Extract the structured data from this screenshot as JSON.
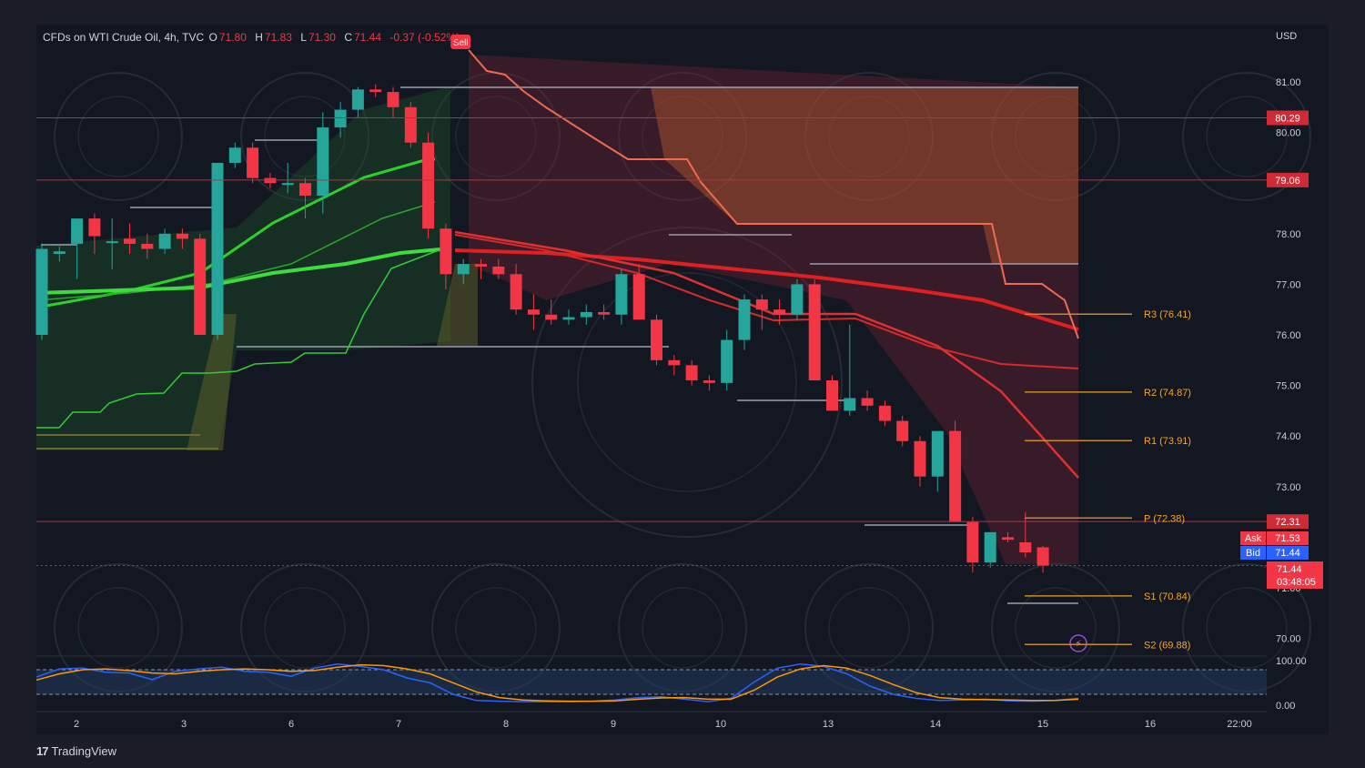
{
  "header": {
    "symbol_text": "CFDs on WTI Crude Oil, 4h, TVC",
    "open_label": "O",
    "open": "71.80",
    "high_label": "H",
    "high": "71.83",
    "low_label": "L",
    "low": "71.30",
    "close_label": "C",
    "close": "71.44",
    "change": "-0.37 (-0.52%)"
  },
  "currency": "USD",
  "branding": {
    "logo": "17",
    "name": "TradingView"
  },
  "colors": {
    "background": "#1a1d27",
    "bull": "#26a69a",
    "bear": "#f23645",
    "accent_orange": "#f5a623",
    "ask": "#f23645",
    "bid": "#2962ff"
  },
  "chart_data": {
    "type": "candlestick",
    "symbol": "CFDs on WTI Crude Oil",
    "timeframe": "4h",
    "source": "TVC",
    "x_tick_labels": [
      "2",
      "3",
      "6",
      "7",
      "8",
      "9",
      "10",
      "13",
      "14",
      "15",
      "16",
      "22:00"
    ],
    "y_ticks": [
      81.0,
      80.0,
      78.0,
      77.0,
      76.0,
      75.0,
      74.0,
      73.0,
      71.0,
      70.0
    ],
    "y_tick_labels": [
      "81.00",
      "80.00",
      "78.00",
      "77.00",
      "76.00",
      "75.00",
      "74.00",
      "73.00",
      "71.00",
      "70.00"
    ],
    "ylim": [
      69.7,
      81.2
    ],
    "candles": [
      {
        "o": 76.0,
        "h": 77.8,
        "l": 75.9,
        "c": 77.7
      },
      {
        "o": 77.6,
        "h": 77.75,
        "l": 77.45,
        "c": 77.65
      },
      {
        "o": 77.8,
        "h": 78.2,
        "l": 77.1,
        "c": 78.3
      },
      {
        "o": 78.3,
        "h": 78.4,
        "l": 77.6,
        "c": 77.95
      },
      {
        "o": 77.85,
        "h": 78.3,
        "l": 77.3,
        "c": 77.85
      },
      {
        "o": 77.9,
        "h": 78.2,
        "l": 77.6,
        "c": 77.8
      },
      {
        "o": 77.8,
        "h": 78.0,
        "l": 77.5,
        "c": 77.7
      },
      {
        "o": 77.7,
        "h": 78.1,
        "l": 77.6,
        "c": 78.0
      },
      {
        "o": 78.0,
        "h": 78.1,
        "l": 77.7,
        "c": 77.9
      },
      {
        "o": 77.9,
        "h": 78.0,
        "l": 76.1,
        "c": 76.0
      },
      {
        "o": 76.0,
        "h": 79.4,
        "l": 75.9,
        "c": 79.4
      },
      {
        "o": 79.4,
        "h": 79.8,
        "l": 79.3,
        "c": 79.7
      },
      {
        "o": 79.7,
        "h": 79.8,
        "l": 79.0,
        "c": 79.1
      },
      {
        "o": 79.1,
        "h": 79.2,
        "l": 78.9,
        "c": 79.0
      },
      {
        "o": 79.0,
        "h": 79.4,
        "l": 78.8,
        "c": 79.0
      },
      {
        "o": 79.0,
        "h": 79.1,
        "l": 78.3,
        "c": 78.75
      },
      {
        "o": 78.75,
        "h": 80.4,
        "l": 78.4,
        "c": 80.1
      },
      {
        "o": 80.1,
        "h": 80.6,
        "l": 79.9,
        "c": 80.45
      },
      {
        "o": 80.45,
        "h": 80.9,
        "l": 80.3,
        "c": 80.85
      },
      {
        "o": 80.85,
        "h": 80.95,
        "l": 80.7,
        "c": 80.8
      },
      {
        "o": 80.8,
        "h": 80.9,
        "l": 80.3,
        "c": 80.5
      },
      {
        "o": 80.5,
        "h": 80.6,
        "l": 79.7,
        "c": 79.8
      },
      {
        "o": 79.8,
        "h": 80.0,
        "l": 77.9,
        "c": 78.1
      },
      {
        "o": 78.1,
        "h": 78.2,
        "l": 76.9,
        "c": 77.2
      },
      {
        "o": 77.2,
        "h": 77.5,
        "l": 77.0,
        "c": 77.4
      },
      {
        "o": 77.4,
        "h": 77.5,
        "l": 77.1,
        "c": 77.35
      },
      {
        "o": 77.35,
        "h": 77.5,
        "l": 77.1,
        "c": 77.2
      },
      {
        "o": 77.2,
        "h": 77.4,
        "l": 76.4,
        "c": 76.5
      },
      {
        "o": 76.5,
        "h": 76.8,
        "l": 76.1,
        "c": 76.4
      },
      {
        "o": 76.4,
        "h": 76.7,
        "l": 76.2,
        "c": 76.3
      },
      {
        "o": 76.3,
        "h": 76.5,
        "l": 76.2,
        "c": 76.35
      },
      {
        "o": 76.35,
        "h": 76.6,
        "l": 76.2,
        "c": 76.45
      },
      {
        "o": 76.45,
        "h": 76.6,
        "l": 76.3,
        "c": 76.4
      },
      {
        "o": 76.4,
        "h": 77.3,
        "l": 76.2,
        "c": 77.2
      },
      {
        "o": 77.2,
        "h": 77.4,
        "l": 76.3,
        "c": 76.3
      },
      {
        "o": 76.3,
        "h": 76.4,
        "l": 75.4,
        "c": 75.5
      },
      {
        "o": 75.5,
        "h": 75.6,
        "l": 75.2,
        "c": 75.4
      },
      {
        "o": 75.4,
        "h": 75.5,
        "l": 75.0,
        "c": 75.1
      },
      {
        "o": 75.1,
        "h": 75.2,
        "l": 74.9,
        "c": 75.05
      },
      {
        "o": 75.05,
        "h": 76.1,
        "l": 74.9,
        "c": 75.9
      },
      {
        "o": 75.9,
        "h": 76.8,
        "l": 75.7,
        "c": 76.7
      },
      {
        "o": 76.7,
        "h": 76.8,
        "l": 76.1,
        "c": 76.5
      },
      {
        "o": 76.5,
        "h": 76.7,
        "l": 76.2,
        "c": 76.4
      },
      {
        "o": 76.4,
        "h": 77.1,
        "l": 76.3,
        "c": 77.0
      },
      {
        "o": 77.0,
        "h": 77.1,
        "l": 75.1,
        "c": 75.1
      },
      {
        "o": 75.1,
        "h": 75.2,
        "l": 74.5,
        "c": 74.5
      },
      {
        "o": 74.5,
        "h": 76.2,
        "l": 74.4,
        "c": 74.75
      },
      {
        "o": 74.75,
        "h": 74.9,
        "l": 74.5,
        "c": 74.6
      },
      {
        "o": 74.6,
        "h": 74.7,
        "l": 74.2,
        "c": 74.3
      },
      {
        "o": 74.3,
        "h": 74.4,
        "l": 73.8,
        "c": 73.9
      },
      {
        "o": 73.9,
        "h": 74.0,
        "l": 73.0,
        "c": 73.2
      },
      {
        "o": 73.2,
        "h": 74.0,
        "l": 72.9,
        "c": 74.1
      },
      {
        "o": 74.1,
        "h": 74.3,
        "l": 72.3,
        "c": 72.3
      },
      {
        "o": 72.3,
        "h": 72.4,
        "l": 71.3,
        "c": 71.5
      },
      {
        "o": 71.5,
        "h": 72.1,
        "l": 71.4,
        "c": 72.1
      },
      {
        "o": 72.0,
        "h": 72.1,
        "l": 71.9,
        "c": 71.95
      },
      {
        "o": 71.9,
        "h": 72.5,
        "l": 71.6,
        "c": 71.7
      },
      {
        "o": 71.8,
        "h": 71.83,
        "l": 71.3,
        "c": 71.44
      }
    ],
    "horizontal_lines": [
      {
        "price": 80.29,
        "label": "80.29"
      },
      {
        "price": 79.06,
        "label": "79.06"
      },
      {
        "price": 72.31,
        "label": "72.31"
      }
    ],
    "pivot_levels": [
      {
        "name": "R3",
        "value": 76.41,
        "label": "R3 (76.41)"
      },
      {
        "name": "R2",
        "value": 74.87,
        "label": "R2 (74.87)"
      },
      {
        "name": "R1",
        "value": 73.91,
        "label": "R1 (73.91)"
      },
      {
        "name": "P",
        "value": 72.38,
        "label": "P (72.38)"
      },
      {
        "name": "S1",
        "value": 70.84,
        "label": "S1 (70.84)"
      },
      {
        "name": "S2",
        "value": 69.88,
        "label": "S2 (69.88)"
      }
    ],
    "signal": {
      "label": "Sell"
    },
    "price_tags": {
      "ask_label": "Ask",
      "ask": "71.53",
      "bid_label": "Bid",
      "bid": "71.44",
      "last": "71.44",
      "countdown": "03:48:05"
    },
    "oscillator": {
      "ylim": [
        0,
        100
      ],
      "y_tick_labels": [
        "100.00",
        "0.00"
      ],
      "series": [
        {
          "color": "#2962ff",
          "values": [
            62,
            82,
            84,
            74,
            72,
            56,
            76,
            82,
            86,
            76,
            74,
            64,
            84,
            94,
            88,
            80,
            60,
            48,
            20,
            5,
            3,
            2,
            2,
            2,
            3,
            6,
            12,
            14,
            8,
            2,
            10,
            50,
            84,
            94,
            88,
            70,
            40,
            20,
            10,
            5,
            6,
            8,
            4,
            3,
            5,
            10
          ]
        },
        {
          "color": "#ff9800",
          "values": [
            55,
            70,
            80,
            82,
            78,
            72,
            70,
            76,
            80,
            82,
            80,
            76,
            78,
            86,
            92,
            90,
            82,
            70,
            48,
            26,
            12,
            6,
            4,
            3,
            3,
            4,
            8,
            11,
            12,
            8,
            8,
            30,
            62,
            82,
            90,
            84,
            66,
            44,
            24,
            12,
            8,
            7,
            6,
            5,
            5,
            8
          ]
        }
      ]
    }
  }
}
